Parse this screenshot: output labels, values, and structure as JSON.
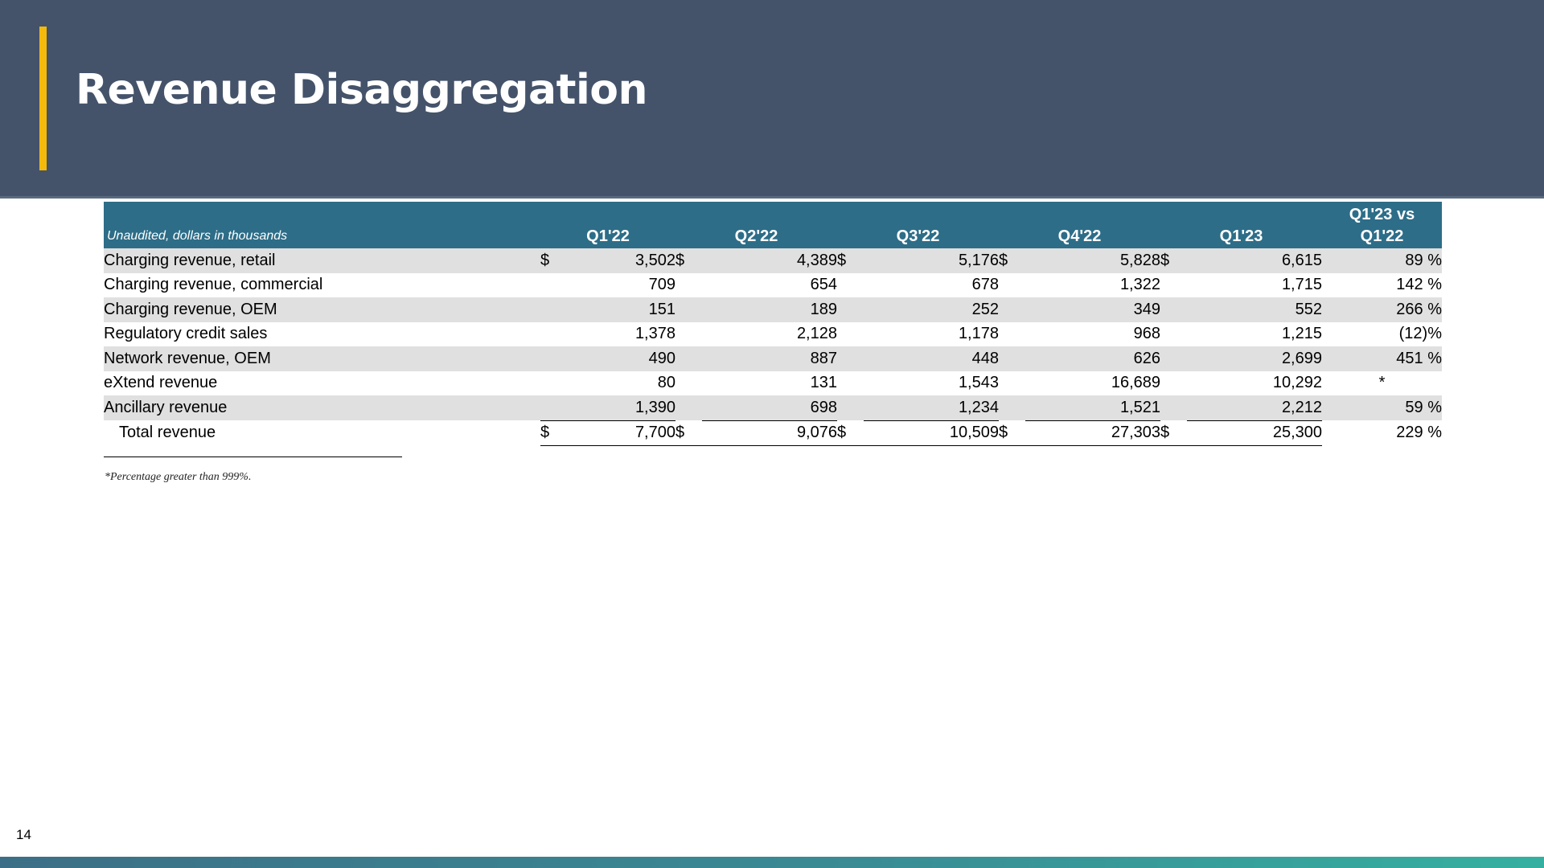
{
  "slide": {
    "title": "Revenue Disaggregation",
    "page_number": "14",
    "footnote": "*Percentage greater than 999%.",
    "colors": {
      "header": "#44536a",
      "accent": "#f5b90b",
      "table_header": "#2d6d88",
      "row_shade": "#e0e0e0"
    }
  },
  "table": {
    "note": "Unaudited, dollars in thousands",
    "headers": [
      "Q1'22",
      "Q2'22",
      "Q3'22",
      "Q4'22",
      "Q1'23"
    ],
    "change_header_line1": "Q1'23 vs",
    "change_header_line2": "Q1'22",
    "currency": "$",
    "rows": [
      {
        "label": "Charging revenue, retail",
        "values": [
          "3,502",
          "4,389",
          "5,176",
          "5,828",
          "6,615"
        ],
        "change": "89 %"
      },
      {
        "label": "Charging revenue, commercial",
        "values": [
          "709",
          "654",
          "678",
          "1,322",
          "1,715"
        ],
        "change": "142 %"
      },
      {
        "label": "Charging revenue, OEM",
        "values": [
          "151",
          "189",
          "252",
          "349",
          "552"
        ],
        "change": "266 %"
      },
      {
        "label": "Regulatory credit sales",
        "values": [
          "1,378",
          "2,128",
          "1,178",
          "968",
          "1,215"
        ],
        "change": "(12)%"
      },
      {
        "label": "Network revenue, OEM",
        "values": [
          "490",
          "887",
          "448",
          "626",
          "2,699"
        ],
        "change": "451 %"
      },
      {
        "label": "eXtend revenue",
        "values": [
          "80",
          "131",
          "1,543",
          "16,689",
          "10,292"
        ],
        "change": "*"
      },
      {
        "label": "Ancillary revenue",
        "values": [
          "1,390",
          "698",
          "1,234",
          "1,521",
          "2,212"
        ],
        "change": "59 %"
      }
    ],
    "total": {
      "label": "Total revenue",
      "values": [
        "7,700",
        "9,076",
        "10,509",
        "27,303",
        "25,300"
      ],
      "change": "229 %"
    }
  }
}
